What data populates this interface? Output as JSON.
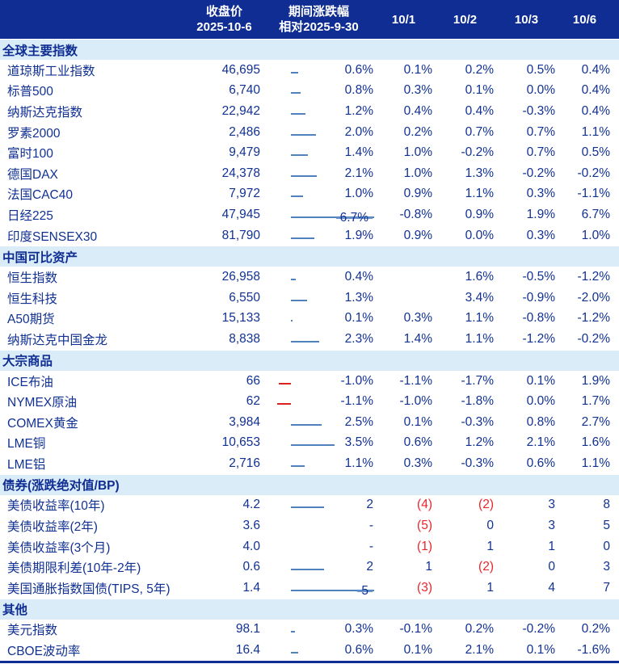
{
  "table": {
    "header": {
      "close_l1": "收盘价",
      "close_l2": "2025-10-6",
      "change_l1": "期间涨跌幅",
      "change_l2": "相对2025-9-30",
      "dates": [
        "10/1",
        "10/2",
        "10/3",
        "10/6"
      ]
    },
    "sections": [
      {
        "title": "全球主要指数",
        "unit": "pct",
        "rows": [
          {
            "name": "道琼斯工业指数",
            "close": "46,695",
            "chg_label": "0.6%",
            "chg": 0.6,
            "days": [
              "0.1%",
              "0.2%",
              "0.5%",
              "0.4%"
            ]
          },
          {
            "name": "标普500",
            "close": "6,740",
            "chg_label": "0.8%",
            "chg": 0.8,
            "days": [
              "0.3%",
              "0.1%",
              "0.0%",
              "0.4%"
            ]
          },
          {
            "name": "纳斯达克指数",
            "close": "22,942",
            "chg_label": "1.2%",
            "chg": 1.2,
            "days": [
              "0.4%",
              "0.4%",
              "-0.3%",
              "0.4%"
            ]
          },
          {
            "name": "罗素2000",
            "close": "2,486",
            "chg_label": "2.0%",
            "chg": 2.0,
            "days": [
              "0.2%",
              "0.7%",
              "0.7%",
              "1.1%"
            ]
          },
          {
            "name": "富时100",
            "close": "9,479",
            "chg_label": "1.4%",
            "chg": 1.4,
            "days": [
              "1.0%",
              "-0.2%",
              "0.7%",
              "0.5%"
            ]
          },
          {
            "name": "德国DAX",
            "close": "24,378",
            "chg_label": "2.1%",
            "chg": 2.1,
            "days": [
              "1.0%",
              "1.3%",
              "-0.2%",
              "-0.2%"
            ]
          },
          {
            "name": "法国CAC40",
            "close": "7,972",
            "chg_label": "1.0%",
            "chg": 1.0,
            "days": [
              "0.9%",
              "1.1%",
              "0.3%",
              "-1.1%"
            ]
          },
          {
            "name": "日经225",
            "close": "47,945",
            "chg_label": "6.7%",
            "chg": 6.7,
            "days": [
              "-0.8%",
              "0.9%",
              "1.9%",
              "6.7%"
            ]
          },
          {
            "name": "印度SENSEX30",
            "close": "81,790",
            "chg_label": "1.9%",
            "chg": 1.9,
            "days": [
              "0.9%",
              "0.0%",
              "0.3%",
              "1.0%"
            ]
          }
        ]
      },
      {
        "title": "中国可比资产",
        "unit": "pct",
        "rows": [
          {
            "name": "恒生指数",
            "close": "26,958",
            "chg_label": "0.4%",
            "chg": 0.4,
            "days": [
              "",
              "1.6%",
              "-0.5%",
              "-1.2%"
            ]
          },
          {
            "name": "恒生科技",
            "close": "6,550",
            "chg_label": "1.3%",
            "chg": 1.3,
            "days": [
              "",
              "3.4%",
              "-0.9%",
              "-2.0%"
            ]
          },
          {
            "name": "A50期货",
            "close": "15,133",
            "chg_label": "0.1%",
            "chg": 0.1,
            "days": [
              "0.3%",
              "1.1%",
              "-0.8%",
              "-1.2%"
            ]
          },
          {
            "name": "纳斯达克中国金龙",
            "close": "8,838",
            "chg_label": "2.3%",
            "chg": 2.3,
            "days": [
              "1.4%",
              "1.1%",
              "-1.2%",
              "-0.2%"
            ]
          }
        ]
      },
      {
        "title": "大宗商品",
        "unit": "pct",
        "rows": [
          {
            "name": "ICE布油",
            "close": "66",
            "chg_label": "-1.0%",
            "chg": -1.0,
            "days": [
              "-1.1%",
              "-1.7%",
              "0.1%",
              "1.9%"
            ]
          },
          {
            "name": "NYMEX原油",
            "close": "62",
            "chg_label": "-1.1%",
            "chg": -1.1,
            "days": [
              "-1.0%",
              "-1.8%",
              "0.0%",
              "1.7%"
            ]
          },
          {
            "name": "COMEX黄金",
            "close": "3,984",
            "chg_label": "2.5%",
            "chg": 2.5,
            "days": [
              "0.1%",
              "-0.3%",
              "0.8%",
              "2.7%"
            ]
          },
          {
            "name": "LME铜",
            "close": "10,653",
            "chg_label": "3.5%",
            "chg": 3.5,
            "days": [
              "0.6%",
              "1.2%",
              "2.1%",
              "1.6%"
            ]
          },
          {
            "name": "LME铝",
            "close": "2,716",
            "chg_label": "1.1%",
            "chg": 1.1,
            "days": [
              "0.3%",
              "-0.3%",
              "0.6%",
              "1.1%"
            ]
          }
        ]
      },
      {
        "title": "债券(涨跌绝对值/BP)",
        "unit": "bp",
        "rows": [
          {
            "name": "美债收益率(10年)",
            "close": "4.2",
            "chg_label": "2",
            "chg": 2,
            "days": [
              "(4)",
              "(2)",
              "3",
              "8"
            ]
          },
          {
            "name": "美债收益率(2年)",
            "close": "3.6",
            "chg_label": "-",
            "chg": null,
            "days": [
              "(5)",
              "0",
              "3",
              "5"
            ]
          },
          {
            "name": "美债收益率(3个月)",
            "close": "4.0",
            "chg_label": "-",
            "chg": null,
            "days": [
              "(1)",
              "1",
              "1",
              "0"
            ]
          },
          {
            "name": "美债期限利差(10年-2年)",
            "close": "0.6",
            "chg_label": "2",
            "chg": 2,
            "days": [
              "1",
              "(2)",
              "0",
              "3"
            ]
          },
          {
            "name": "美国通胀指数国债(TIPS, 5年)",
            "close": "1.4",
            "chg_label": "5",
            "chg": 5,
            "days": [
              "(3)",
              "1",
              "4",
              "7"
            ]
          }
        ]
      },
      {
        "title": "其他",
        "unit": "pct",
        "rows": [
          {
            "name": "美元指数",
            "close": "98.1",
            "chg_label": "0.3%",
            "chg": 0.3,
            "days": [
              "-0.1%",
              "0.2%",
              "-0.2%",
              "0.2%"
            ]
          },
          {
            "name": "CBOE波动率",
            "close": "16.4",
            "chg_label": "0.6%",
            "chg": 0.6,
            "days": [
              "0.1%",
              "2.1%",
              "0.1%",
              "-1.6%"
            ]
          }
        ]
      }
    ]
  },
  "colors": {
    "header_bg": "#0F2D92",
    "header_text": "#FFFFFF",
    "section_bg": "#D9ECF8",
    "data_text": "#113193",
    "negative_red_text": "#E8262A",
    "bar_positive_border": "#4F81BD",
    "bar_positive_fill_from": "#6F9BD2",
    "bar_positive_fill_to": "#D8E3F3",
    "bar_negative_border": "#DD2020",
    "bar_negative_fill_from": "#FBA5A5",
    "bar_negative_fill_to": "#E93030",
    "axis_dash": "#3A3A3A",
    "bottom_rule": "#0F2D92"
  }
}
